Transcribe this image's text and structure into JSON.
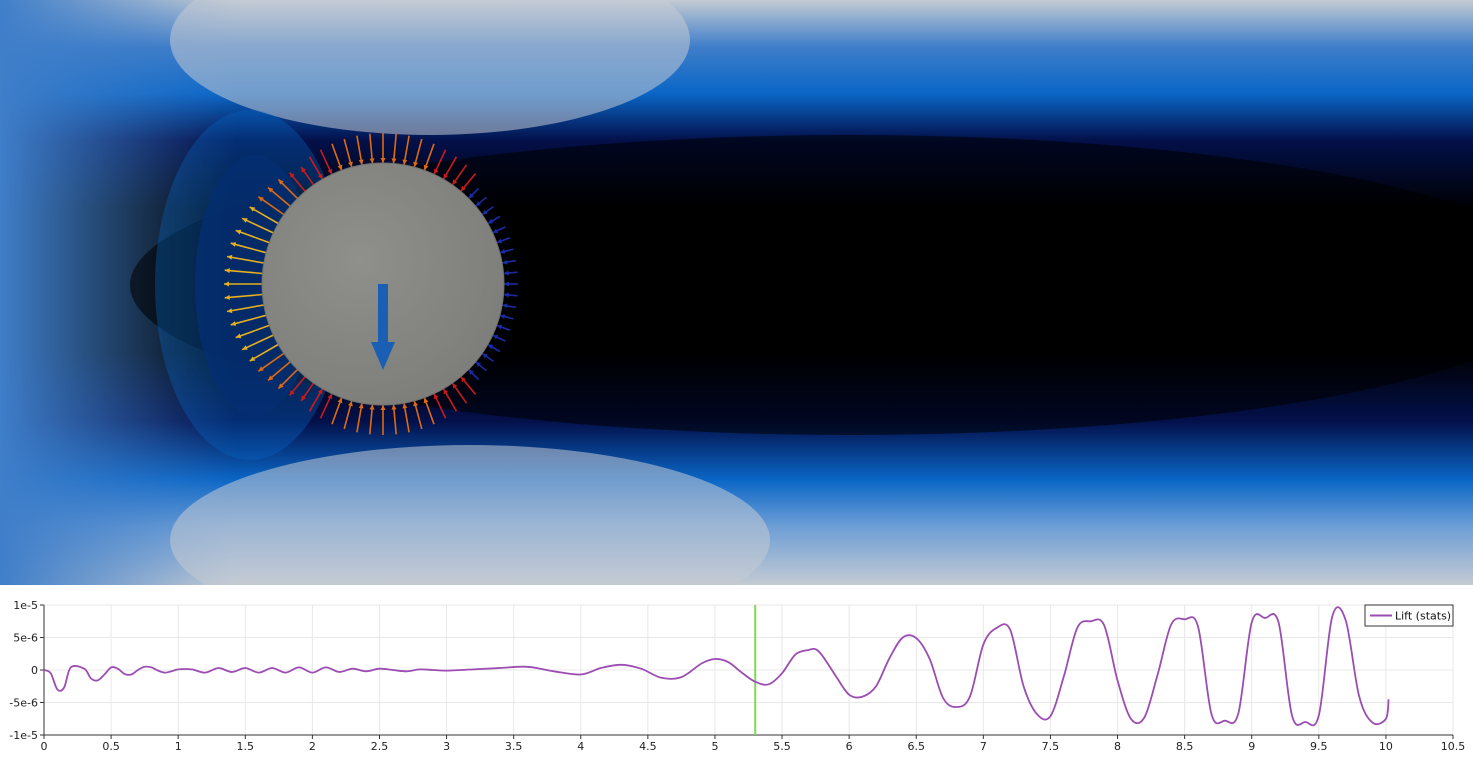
{
  "colors": {
    "flow_outer": "#3f7ec9",
    "flow_light": "#c4cbd3",
    "flow_blue": "#0a66c6",
    "flow_dark": "#03104a",
    "wake_core": "#000000",
    "cylinder": "#8a8a88",
    "force_arrow": "#1a5fb4",
    "series_line": "#9b4db2",
    "time_marker": "#7ed957",
    "grid": "#e8e8e8",
    "axis": "#333333",
    "arrow_high": "#e6b020",
    "arrow_mid": "#e06a10",
    "arrow_red": "#cc1a1a",
    "arrow_low": "#1a2aa8"
  },
  "viewport": {
    "cylinder_label": "",
    "force_arrow_icon": "down-arrow-icon"
  },
  "chart_data": {
    "type": "line",
    "title": "",
    "xlabel": "",
    "ylabel": "",
    "xlim": [
      0,
      10.5
    ],
    "ylim": [
      -1e-05,
      1e-05
    ],
    "x_ticks": [
      0,
      0.5,
      1,
      1.5,
      2,
      2.5,
      3,
      3.5,
      4,
      4.5,
      5,
      5.5,
      6,
      6.5,
      7,
      7.5,
      8,
      8.5,
      9,
      9.5,
      10,
      10.5
    ],
    "x_tick_labels": [
      "0",
      "0.5",
      "1",
      "1.5",
      "2",
      "2.5",
      "3",
      "3.5",
      "4",
      "4.5",
      "5",
      "5.5",
      "6",
      "6.5",
      "7",
      "7.5",
      "8",
      "8.5",
      "9",
      "9.5",
      "10",
      "10.5"
    ],
    "y_ticks": [
      -1e-05,
      -5e-06,
      0,
      5e-06,
      1e-05
    ],
    "y_tick_labels": [
      "-1e-5",
      "-5e-6",
      "0",
      "5e-6",
      "1e-5"
    ],
    "legend_position": "top-right",
    "grid": true,
    "time_marker_x": 5.3,
    "series": [
      {
        "name": "Lift (stats)",
        "x": [
          0,
          0.05,
          0.1,
          0.15,
          0.2,
          0.3,
          0.35,
          0.4,
          0.45,
          0.5,
          0.55,
          0.6,
          0.65,
          0.7,
          0.75,
          0.8,
          0.85,
          0.9,
          0.95,
          1.0,
          1.1,
          1.2,
          1.3,
          1.4,
          1.5,
          1.6,
          1.7,
          1.8,
          1.9,
          2.0,
          2.1,
          2.2,
          2.3,
          2.4,
          2.5,
          2.6,
          2.7,
          2.8,
          2.9,
          3.0,
          3.2,
          3.4,
          3.6,
          3.8,
          4.0,
          4.15,
          4.3,
          4.45,
          4.6,
          4.75,
          4.9,
          5.0,
          5.1,
          5.2,
          5.3,
          5.4,
          5.5,
          5.6,
          5.7,
          5.75,
          5.8,
          5.9,
          6.0,
          6.1,
          6.2,
          6.3,
          6.4,
          6.5,
          6.6,
          6.7,
          6.8,
          6.9,
          7.0,
          7.1,
          7.2,
          7.3,
          7.4,
          7.5,
          7.6,
          7.7,
          7.8,
          7.9,
          8.0,
          8.1,
          8.2,
          8.3,
          8.4,
          8.5,
          8.6,
          8.7,
          8.8,
          8.9,
          9.0,
          9.1,
          9.2,
          9.3,
          9.4,
          9.5,
          9.6,
          9.7,
          9.8,
          9.9,
          10.0,
          10.02
        ],
        "values": [
          0,
          -5e-07,
          -3e-06,
          -2.7e-06,
          4e-07,
          2e-07,
          -1.3e-06,
          -1.6e-06,
          -7e-07,
          4e-07,
          2e-07,
          -6e-07,
          -7e-07,
          0,
          5e-07,
          4e-07,
          -1e-07,
          -4e-07,
          -2e-07,
          1e-07,
          1e-07,
          -4e-07,
          3e-07,
          -3e-07,
          3e-07,
          -4e-07,
          3e-07,
          -4e-07,
          4e-07,
          -4e-07,
          4e-07,
          -3e-07,
          2e-07,
          -2e-07,
          2e-07,
          0,
          -2e-07,
          1e-07,
          0,
          -1e-07,
          1e-07,
          3e-07,
          5e-07,
          -2e-07,
          -7e-07,
          3e-07,
          8e-07,
          2e-07,
          -1.2e-06,
          -1.1e-06,
          1e-06,
          1.7e-06,
          1.2e-06,
          -4e-07,
          -1.8e-06,
          -2.2e-06,
          -5e-07,
          2.4e-06,
          3.1e-06,
          3.2e-06,
          2.2e-06,
          -9e-07,
          -3.8e-06,
          -4.1e-06,
          -2.5e-06,
          1.8e-06,
          5e-06,
          4.9e-06,
          1.7e-06,
          -4.3e-06,
          -5.7e-06,
          -4.1e-06,
          3.9e-06,
          6.5e-06,
          6.2e-06,
          -2.5e-06,
          -6.8e-06,
          -7.1e-06,
          -1e-06,
          6.5e-06,
          7.5e-06,
          6.9e-06,
          -1.6e-06,
          -7.5e-06,
          -7.3e-06,
          -6e-07,
          7e-06,
          7.8e-06,
          6.7e-06,
          -6.8e-06,
          -7.8e-06,
          -6.7e-06,
          7.3e-06,
          8e-06,
          7.3e-06,
          -7e-06,
          -8e-06,
          -7e-06,
          8.2e-06,
          7.7e-06,
          -4e-06,
          -8.1e-06,
          -7.5e-06,
          -4.5e-06
        ]
      }
    ]
  }
}
